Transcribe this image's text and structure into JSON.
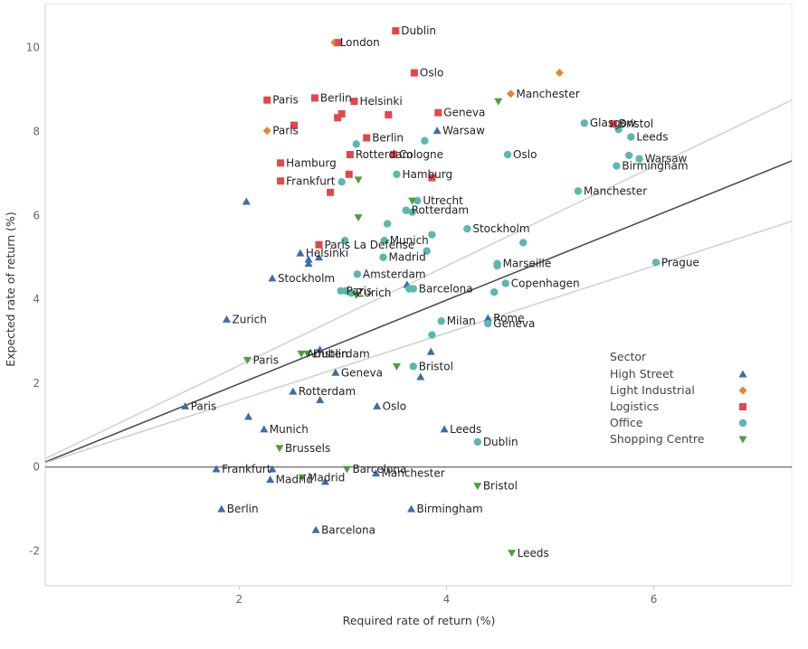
{
  "chart_data": {
    "type": "scatter",
    "title": "",
    "xlabel": "Required rate of return (%)",
    "ylabel": "Expected rate of return (%)",
    "xlim": [
      0.13,
      7.33
    ],
    "ylim": [
      -2.83,
      11.05
    ],
    "xticks": [
      2,
      4,
      6
    ],
    "yticks": [
      -2,
      0,
      2,
      4,
      6,
      8,
      10
    ],
    "grid": false,
    "legend_position": "bottom-right",
    "legend_title": "Sector",
    "reference_lines": [
      {
        "style": "dark",
        "x": [
          0.13,
          7.33
        ],
        "y": [
          0.12,
          7.3
        ]
      },
      {
        "style": "light",
        "x": [
          0.13,
          7.33
        ],
        "y": [
          0.2,
          8.75
        ]
      },
      {
        "style": "light",
        "x": [
          0.13,
          7.33
        ],
        "y": [
          0.1,
          5.86
        ]
      }
    ],
    "series": [
      {
        "name": "High Street",
        "color": "#3F6BAA",
        "marker": "triangle",
        "points": [
          {
            "x": 2.07,
            "y": 6.33,
            "label": ""
          },
          {
            "x": 3.91,
            "y": 8.02,
            "label": "Warsaw"
          },
          {
            "x": 2.77,
            "y": 5.0,
            "label": ""
          },
          {
            "x": 2.59,
            "y": 5.1,
            "label": "Helsinki"
          },
          {
            "x": 2.67,
            "y": 4.95,
            "label": ""
          },
          {
            "x": 2.67,
            "y": 4.85,
            "label": ""
          },
          {
            "x": 2.32,
            "y": 4.5,
            "label": "Stockholm"
          },
          {
            "x": 3.62,
            "y": 4.35,
            "label": ""
          },
          {
            "x": 4.4,
            "y": 3.55,
            "label": "Rome"
          },
          {
            "x": 1.88,
            "y": 3.52,
            "label": "Zurich"
          },
          {
            "x": 3.85,
            "y": 2.75,
            "label": ""
          },
          {
            "x": 2.78,
            "y": 2.8,
            "label": ""
          },
          {
            "x": 2.93,
            "y": 2.25,
            "label": "Geneva"
          },
          {
            "x": 3.75,
            "y": 2.15,
            "label": ""
          },
          {
            "x": 2.52,
            "y": 1.8,
            "label": "Rotterdam"
          },
          {
            "x": 2.78,
            "y": 1.6,
            "label": ""
          },
          {
            "x": 1.48,
            "y": 1.45,
            "label": "Paris"
          },
          {
            "x": 3.33,
            "y": 1.45,
            "label": "Oslo"
          },
          {
            "x": 2.09,
            "y": 1.2,
            "label": ""
          },
          {
            "x": 2.24,
            "y": 0.9,
            "label": "Munich"
          },
          {
            "x": 3.98,
            "y": 0.9,
            "label": "Leeds"
          },
          {
            "x": 1.78,
            "y": -0.05,
            "label": "Frankfurt"
          },
          {
            "x": 2.32,
            "y": -0.05,
            "label": ""
          },
          {
            "x": 3.32,
            "y": -0.15,
            "label": "Manchester"
          },
          {
            "x": 2.3,
            "y": -0.3,
            "label": "Madrid"
          },
          {
            "x": 2.83,
            "y": -0.35,
            "label": ""
          },
          {
            "x": 1.83,
            "y": -1.0,
            "label": "Berlin"
          },
          {
            "x": 3.66,
            "y": -1.0,
            "label": "Birmingham"
          },
          {
            "x": 2.74,
            "y": -1.5,
            "label": "Barcelona"
          }
        ]
      },
      {
        "name": "Light Industrial",
        "color": "#E8842C",
        "marker": "diamond",
        "points": [
          {
            "x": 2.92,
            "y": 10.12,
            "label": "London"
          },
          {
            "x": 5.09,
            "y": 9.4,
            "label": ""
          },
          {
            "x": 4.62,
            "y": 8.9,
            "label": "Manchester"
          },
          {
            "x": 2.27,
            "y": 8.02,
            "label": "Paris"
          }
        ]
      },
      {
        "name": "Logistics",
        "color": "#E2474C",
        "marker": "square",
        "points": [
          {
            "x": 2.96,
            "y": 10.12,
            "label": ""
          },
          {
            "x": 3.51,
            "y": 10.4,
            "label": "Dublin"
          },
          {
            "x": 3.69,
            "y": 9.4,
            "label": "Oslo"
          },
          {
            "x": 2.27,
            "y": 8.75,
            "label": "Paris"
          },
          {
            "x": 2.73,
            "y": 8.8,
            "label": "Berlin"
          },
          {
            "x": 3.11,
            "y": 8.72,
            "label": "Helsinki"
          },
          {
            "x": 2.99,
            "y": 8.42,
            "label": ""
          },
          {
            "x": 2.95,
            "y": 8.33,
            "label": ""
          },
          {
            "x": 3.44,
            "y": 8.4,
            "label": ""
          },
          {
            "x": 3.92,
            "y": 8.45,
            "label": "Geneva"
          },
          {
            "x": 2.53,
            "y": 8.15,
            "label": ""
          },
          {
            "x": 3.23,
            "y": 7.85,
            "label": "Berlin"
          },
          {
            "x": 5.61,
            "y": 8.18,
            "label": "Bristol"
          },
          {
            "x": 3.07,
            "y": 7.45,
            "label": "Rotterdam"
          },
          {
            "x": 3.49,
            "y": 7.45,
            "label": "Cologne"
          },
          {
            "x": 2.4,
            "y": 7.25,
            "label": "Hamburg"
          },
          {
            "x": 3.06,
            "y": 6.98,
            "label": ""
          },
          {
            "x": 3.86,
            "y": 6.9,
            "label": ""
          },
          {
            "x": 2.4,
            "y": 6.82,
            "label": "Frankfurt"
          },
          {
            "x": 2.88,
            "y": 6.55,
            "label": ""
          },
          {
            "x": 2.77,
            "y": 5.3,
            "label": "Paris La Defense"
          }
        ]
      },
      {
        "name": "Office",
        "color": "#5BB8B0",
        "marker": "circle",
        "points": [
          {
            "x": 5.33,
            "y": 8.2,
            "label": "Glasgow"
          },
          {
            "x": 5.66,
            "y": 8.05,
            "label": ""
          },
          {
            "x": 5.78,
            "y": 7.87,
            "label": "Leeds"
          },
          {
            "x": 3.13,
            "y": 7.7,
            "label": ""
          },
          {
            "x": 3.79,
            "y": 7.78,
            "label": ""
          },
          {
            "x": 4.59,
            "y": 7.45,
            "label": "Oslo"
          },
          {
            "x": 5.76,
            "y": 7.43,
            "label": ""
          },
          {
            "x": 5.86,
            "y": 7.35,
            "label": "Warsaw"
          },
          {
            "x": 5.64,
            "y": 7.18,
            "label": "Birmingham"
          },
          {
            "x": 3.52,
            "y": 6.98,
            "label": "Hamburg"
          },
          {
            "x": 2.99,
            "y": 6.8,
            "label": ""
          },
          {
            "x": 5.27,
            "y": 6.58,
            "label": "Manchester"
          },
          {
            "x": 3.72,
            "y": 6.35,
            "label": "Utrecht"
          },
          {
            "x": 3.61,
            "y": 6.12,
            "label": "Rotterdam"
          },
          {
            "x": 3.67,
            "y": 6.08,
            "label": ""
          },
          {
            "x": 3.43,
            "y": 5.8,
            "label": ""
          },
          {
            "x": 4.2,
            "y": 5.68,
            "label": "Stockholm"
          },
          {
            "x": 3.86,
            "y": 5.54,
            "label": ""
          },
          {
            "x": 3.02,
            "y": 5.4,
            "label": ""
          },
          {
            "x": 3.4,
            "y": 5.4,
            "label": "Munich"
          },
          {
            "x": 4.74,
            "y": 5.35,
            "label": ""
          },
          {
            "x": 3.81,
            "y": 5.15,
            "label": ""
          },
          {
            "x": 3.39,
            "y": 5.0,
            "label": "Madrid"
          },
          {
            "x": 4.49,
            "y": 4.85,
            "label": "Marseille"
          },
          {
            "x": 4.49,
            "y": 4.8,
            "label": ""
          },
          {
            "x": 3.14,
            "y": 4.6,
            "label": "Amsterdam"
          },
          {
            "x": 6.02,
            "y": 4.88,
            "label": "Prague"
          },
          {
            "x": 4.57,
            "y": 4.38,
            "label": "Copenhagen"
          },
          {
            "x": 3.64,
            "y": 4.25,
            "label": ""
          },
          {
            "x": 3.68,
            "y": 4.25,
            "label": "Barcelona"
          },
          {
            "x": 2.98,
            "y": 4.2,
            "label": "Paris"
          },
          {
            "x": 3.03,
            "y": 4.2,
            "label": ""
          },
          {
            "x": 3.08,
            "y": 4.15,
            "label": "Zurich"
          },
          {
            "x": 4.46,
            "y": 4.17,
            "label": ""
          },
          {
            "x": 3.95,
            "y": 3.48,
            "label": "Milan"
          },
          {
            "x": 4.4,
            "y": 3.42,
            "label": "Geneva"
          },
          {
            "x": 3.86,
            "y": 3.15,
            "label": ""
          },
          {
            "x": 3.68,
            "y": 2.4,
            "label": "Bristol"
          },
          {
            "x": 4.3,
            "y": 0.6,
            "label": "Dublin"
          }
        ]
      },
      {
        "name": "Shopping Centre",
        "color": "#4E9E3F",
        "marker": "triangle-down",
        "points": [
          {
            "x": 4.5,
            "y": 8.72,
            "label": ""
          },
          {
            "x": 3.15,
            "y": 6.85,
            "label": ""
          },
          {
            "x": 3.67,
            "y": 6.35,
            "label": ""
          },
          {
            "x": 3.15,
            "y": 5.95,
            "label": ""
          },
          {
            "x": 3.13,
            "y": 4.1,
            "label": ""
          },
          {
            "x": 2.08,
            "y": 2.55,
            "label": "Paris"
          },
          {
            "x": 2.6,
            "y": 2.7,
            "label": "Amsterdam"
          },
          {
            "x": 2.66,
            "y": 2.7,
            "label": "Dublin"
          },
          {
            "x": 3.52,
            "y": 2.4,
            "label": ""
          },
          {
            "x": 2.39,
            "y": 0.45,
            "label": "Brussels"
          },
          {
            "x": 2.61,
            "y": -0.25,
            "label": "Madrid"
          },
          {
            "x": 3.04,
            "y": -0.05,
            "label": "Barcelona"
          },
          {
            "x": 4.3,
            "y": -0.45,
            "label": "Bristol"
          },
          {
            "x": 4.63,
            "y": -2.05,
            "label": "Leeds"
          }
        ]
      }
    ]
  }
}
